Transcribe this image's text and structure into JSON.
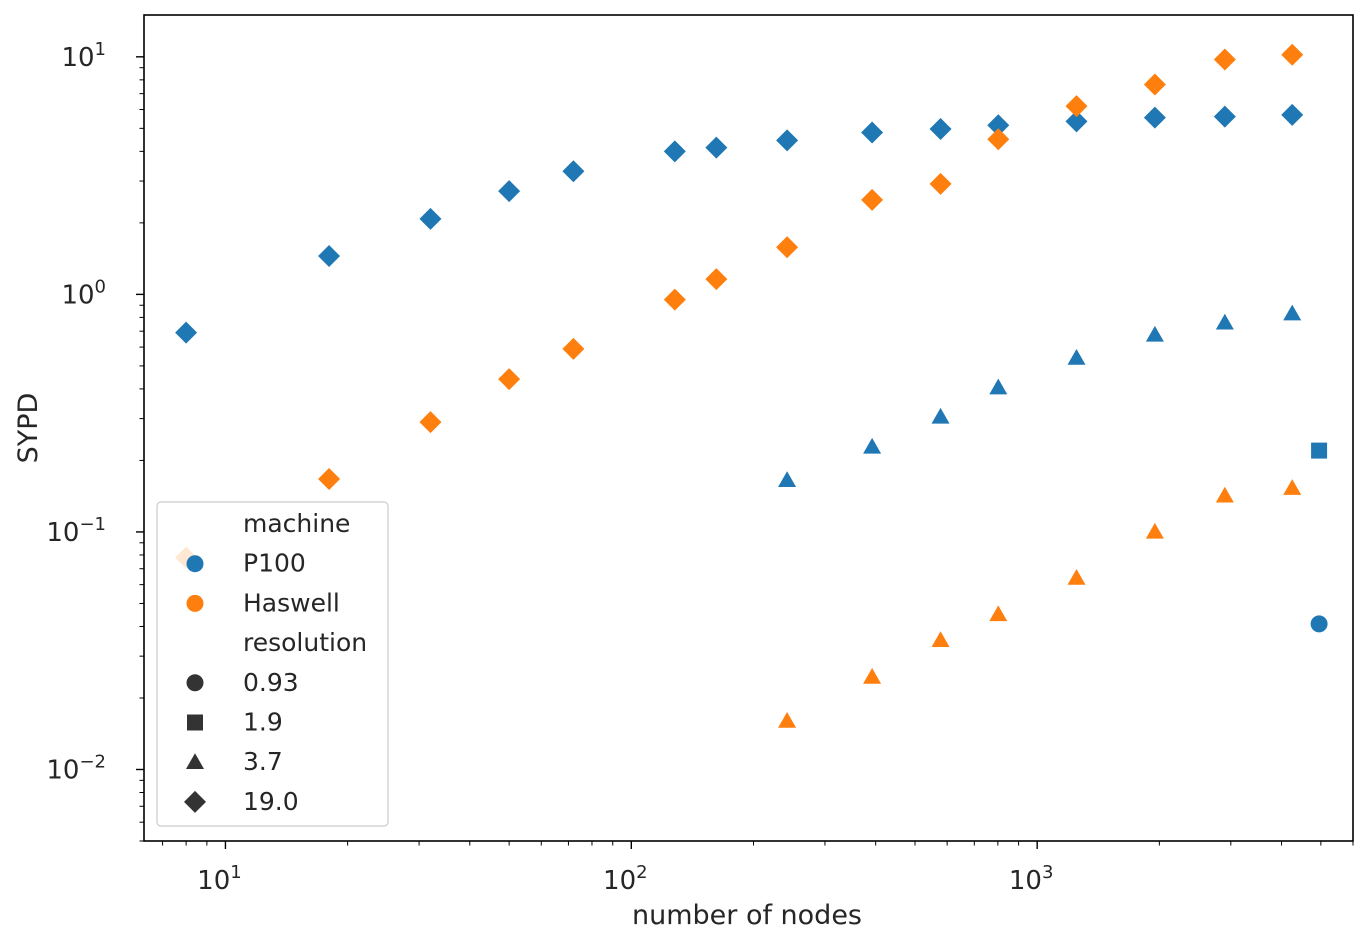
{
  "chart_data": {
    "type": "scatter",
    "xlabel": "number of nodes",
    "ylabel": "SYPD",
    "xscale": "log",
    "yscale": "log",
    "xlim": [
      6.3,
      6000
    ],
    "ylim": [
      0.005,
      15
    ],
    "x_ticks": [
      {
        "base": "10",
        "exp": "1",
        "value": 10
      },
      {
        "base": "10",
        "exp": "2",
        "value": 100
      },
      {
        "base": "10",
        "exp": "3",
        "value": 1000
      }
    ],
    "y_ticks": [
      {
        "base": "10",
        "exp": "1",
        "value": 10
      },
      {
        "base": "10",
        "exp": "0",
        "value": 1
      },
      {
        "base": "10",
        "exp": "−1",
        "value": 0.1
      },
      {
        "base": "10",
        "exp": "−2",
        "value": 0.01
      }
    ],
    "grid": false,
    "legend": {
      "position": "lower-left",
      "title_hue": "machine",
      "hue": [
        {
          "name": "P100",
          "color": "#1f77b4"
        },
        {
          "name": "Haswell",
          "color": "#ff7f0e"
        }
      ],
      "title_style": "resolution",
      "style": [
        {
          "name": "0.93",
          "marker": "circle"
        },
        {
          "name": "1.9",
          "marker": "square"
        },
        {
          "name": "3.7",
          "marker": "triangle"
        },
        {
          "name": "19.0",
          "marker": "diamond"
        }
      ],
      "marker_color": "#333333"
    },
    "series": [
      {
        "machine": "P100",
        "resolution": "19.0",
        "marker": "diamond",
        "color": "#1f77b4",
        "points": [
          [
            8,
            0.69
          ],
          [
            18,
            1.45
          ],
          [
            32,
            2.08
          ],
          [
            50,
            2.72
          ],
          [
            72,
            3.3
          ],
          [
            128,
            4.0
          ],
          [
            162,
            4.15
          ],
          [
            242,
            4.45
          ],
          [
            392,
            4.8
          ],
          [
            578,
            4.97
          ],
          [
            802,
            5.15
          ],
          [
            1250,
            5.35
          ],
          [
            1950,
            5.55
          ],
          [
            2900,
            5.6
          ],
          [
            4250,
            5.7
          ]
        ]
      },
      {
        "machine": "Haswell",
        "resolution": "19.0",
        "marker": "diamond",
        "color": "#ff7f0e",
        "points": [
          [
            8,
            0.078
          ],
          [
            18,
            0.167
          ],
          [
            32,
            0.29
          ],
          [
            50,
            0.44
          ],
          [
            72,
            0.59
          ],
          [
            128,
            0.95
          ],
          [
            162,
            1.16
          ],
          [
            242,
            1.58
          ],
          [
            392,
            2.5
          ],
          [
            578,
            2.92
          ],
          [
            802,
            4.5
          ],
          [
            1250,
            6.2
          ],
          [
            1950,
            7.65
          ],
          [
            2900,
            9.75
          ],
          [
            4250,
            10.2
          ]
        ]
      },
      {
        "machine": "P100",
        "resolution": "3.7",
        "marker": "triangle",
        "color": "#1f77b4",
        "points": [
          [
            242,
            0.165
          ],
          [
            392,
            0.228
          ],
          [
            578,
            0.305
          ],
          [
            802,
            0.405
          ],
          [
            1250,
            0.54
          ],
          [
            1950,
            0.675
          ],
          [
            2900,
            0.76
          ],
          [
            4250,
            0.83
          ]
        ]
      },
      {
        "machine": "Haswell",
        "resolution": "3.7",
        "marker": "triangle",
        "color": "#ff7f0e",
        "points": [
          [
            242,
            0.016
          ],
          [
            392,
            0.0245
          ],
          [
            578,
            0.035
          ],
          [
            802,
            0.045
          ],
          [
            1250,
            0.064
          ],
          [
            1950,
            0.1
          ],
          [
            2900,
            0.142
          ],
          [
            4250,
            0.153
          ]
        ]
      },
      {
        "machine": "P100",
        "resolution": "1.9",
        "marker": "square",
        "color": "#1f77b4",
        "points": [
          [
            4950,
            0.22
          ]
        ]
      },
      {
        "machine": "P100",
        "resolution": "0.93",
        "marker": "circle",
        "color": "#1f77b4",
        "points": [
          [
            4950,
            0.041
          ]
        ]
      }
    ]
  }
}
